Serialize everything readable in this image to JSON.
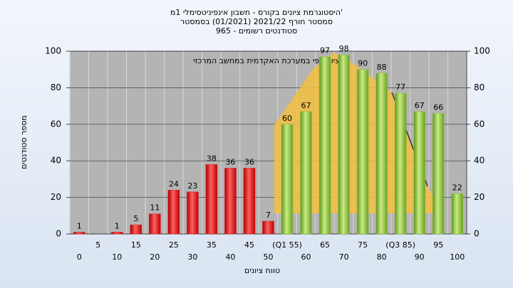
{
  "chart_data": {
    "type": "bar",
    "title": "היסטוגרמת ציונים בקורס - חשבון אינפיניטסימלי 1מ'",
    "subtitle": "סמסטר חורף 2021/22 (01/2021) בסמסטר",
    "subtitle2": "סטודנטים רשומים - 965",
    "annotation": "ציון סופי במערכת האקדמית במחשב המרכזי",
    "x_label": "טווח ציונים",
    "y_label": "מספר סטודנטים",
    "categories": [
      "0",
      "5",
      "10",
      "15",
      "20",
      "25",
      "30",
      "35",
      "40",
      "45",
      "50",
      "(Q1 55)",
      "60",
      "65",
      "70",
      "75",
      "80",
      "(Q3 85)",
      "90",
      "95",
      "100"
    ],
    "values": [
      1,
      0,
      1,
      5,
      11,
      24,
      23,
      38,
      36,
      36,
      7,
      60,
      67,
      97,
      98,
      90,
      88,
      77,
      67,
      66,
      22
    ],
    "colors": [
      "#e02020",
      "#e02020",
      "#e02020",
      "#e02020",
      "#e02020",
      "#e02020",
      "#e02020",
      "#e02020",
      "#e02020",
      "#e02020",
      "#e02020",
      "#8cc43c",
      "#8cc43c",
      "#8cc43c",
      "#8cc43c",
      "#8cc43c",
      "#8cc43c",
      "#8cc43c",
      "#8cc43c",
      "#8cc43c",
      "#8cc43c"
    ],
    "ylim": [
      0,
      100
    ],
    "yticks": [
      0,
      20,
      40,
      60,
      80,
      100
    ],
    "y2lim": [
      0,
      100
    ],
    "y2ticks": [
      0,
      20,
      40,
      60,
      80,
      100
    ],
    "grid": true
  }
}
